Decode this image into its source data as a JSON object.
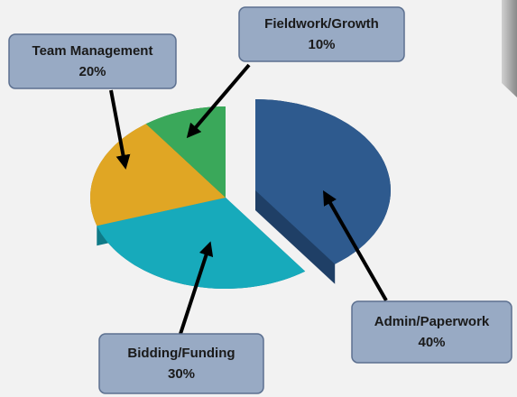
{
  "chart_data": {
    "type": "pie",
    "categories": [
      "Admin/Paperwork",
      "Bidding/Funding",
      "Team Management",
      "Fieldwork/Growth"
    ],
    "values": [
      40,
      30,
      20,
      10
    ],
    "value_labels": [
      "40%",
      "30%",
      "20%",
      "10%"
    ],
    "colors": [
      "#2e5a8e",
      "#17aabb",
      "#e0a624",
      "#3aa85a"
    ],
    "side_colors": [
      "#1f3f66",
      "#0f7a87",
      "#a8781a",
      "#287a40"
    ]
  }
}
